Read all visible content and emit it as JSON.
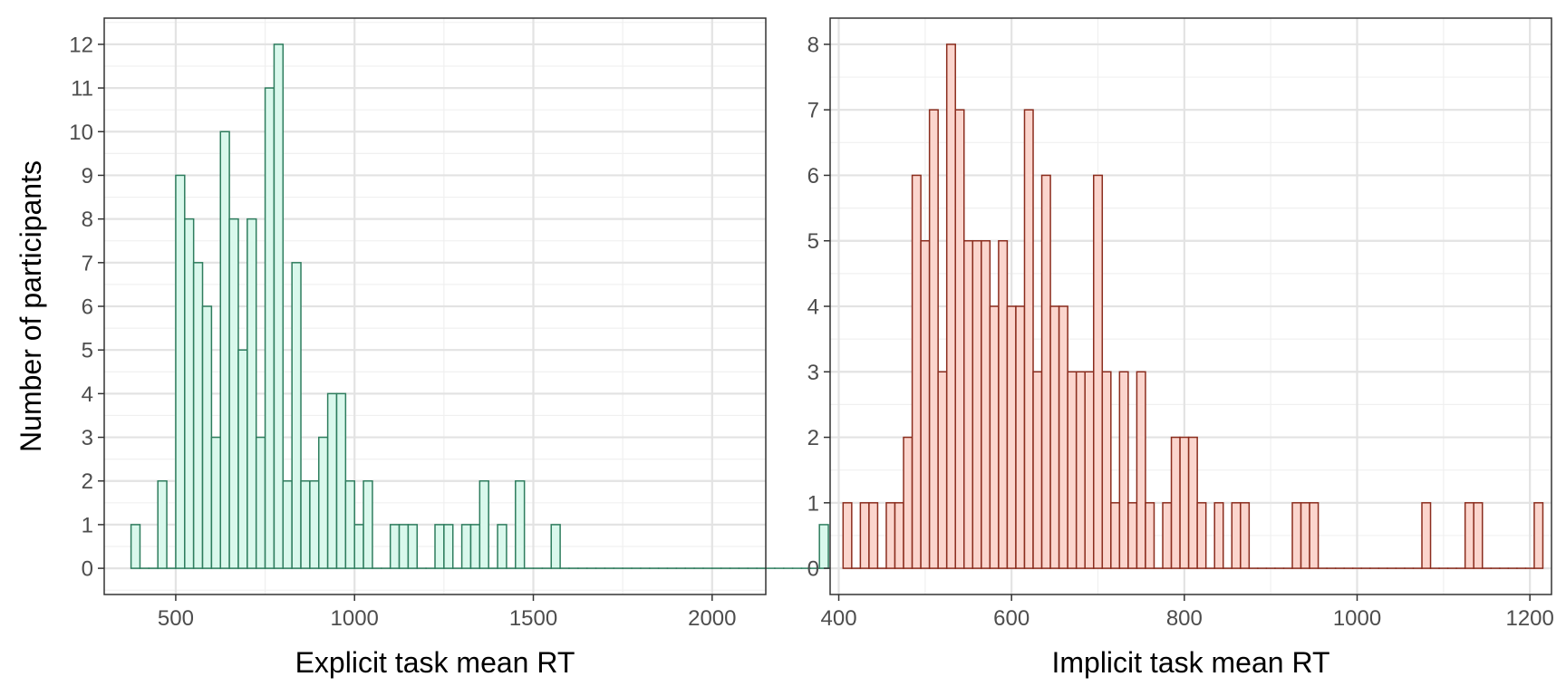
{
  "ylabel": "Number of participants",
  "chart_data": [
    {
      "type": "bar",
      "subtype": "histogram",
      "xlabel": "Explicit task mean RT",
      "ylabel": "Number of participants",
      "xlim": [
        300,
        2150
      ],
      "ylim": [
        -0.6,
        12.6
      ],
      "xticks": [
        500,
        1000,
        1500,
        2000
      ],
      "yticks": [
        0,
        1,
        2,
        3,
        4,
        5,
        6,
        7,
        8,
        9,
        10,
        11,
        12
      ],
      "grid": true,
      "bin_start": 375,
      "bin_width": 25,
      "counts": [
        1,
        0,
        0,
        2,
        0,
        9,
        8,
        7,
        6,
        3,
        10,
        8,
        5,
        8,
        3,
        11,
        12,
        2,
        7,
        2,
        2,
        3,
        4,
        4,
        2,
        1,
        2,
        0,
        0,
        1,
        1,
        1,
        0,
        0,
        1,
        1,
        0,
        1,
        1,
        2,
        0,
        1,
        0,
        2,
        0,
        0,
        0,
        1,
        0,
        0,
        0,
        0,
        0,
        0,
        0,
        0,
        0,
        0,
        0,
        0,
        0,
        0,
        0,
        0,
        0,
        0,
        0,
        0,
        0,
        0,
        0,
        0,
        0,
        0,
        0,
        0,
        0,
        1
      ],
      "fill_color": "#d9f8ec",
      "edge_color": "#2e7d5e"
    },
    {
      "type": "bar",
      "subtype": "histogram",
      "xlabel": "Implicit task mean RT",
      "ylabel": "",
      "xlim": [
        390,
        1225
      ],
      "ylim": [
        -0.4,
        8.4
      ],
      "xticks": [
        400,
        600,
        800,
        1000,
        1200
      ],
      "yticks": [
        0,
        1,
        2,
        3,
        4,
        5,
        6,
        7,
        8
      ],
      "grid": true,
      "bin_start": 405,
      "bin_width": 10,
      "counts": [
        1,
        0,
        1,
        1,
        0,
        1,
        1,
        2,
        6,
        5,
        7,
        3,
        8,
        7,
        5,
        5,
        5,
        4,
        5,
        4,
        4,
        7,
        3,
        6,
        4,
        4,
        3,
        3,
        3,
        6,
        3,
        1,
        3,
        1,
        3,
        1,
        0,
        1,
        2,
        2,
        2,
        1,
        0,
        1,
        0,
        1,
        1,
        0,
        0,
        0,
        0,
        0,
        1,
        1,
        1,
        0,
        0,
        0,
        0,
        0,
        0,
        0,
        0,
        0,
        0,
        0,
        0,
        1,
        0,
        0,
        0,
        0,
        1,
        1,
        0,
        0,
        0,
        0,
        0,
        0,
        1
      ],
      "fill_color": "#fbd5cd",
      "edge_color": "#8b2d1e"
    }
  ]
}
